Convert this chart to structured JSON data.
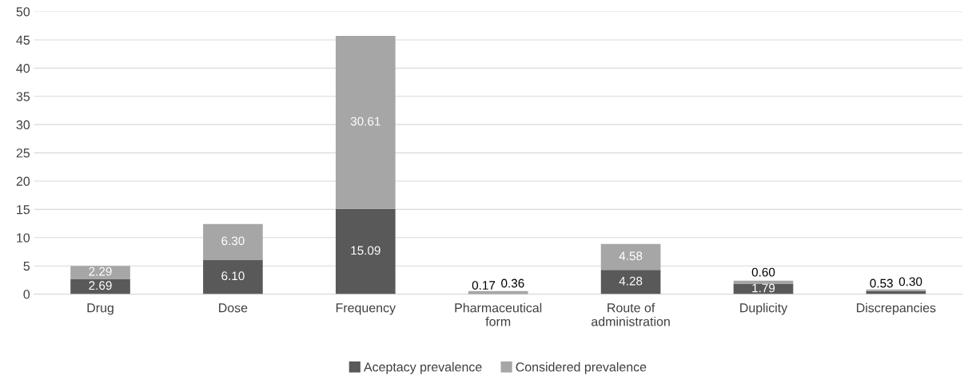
{
  "chart_data": {
    "type": "bar",
    "stacked": true,
    "categories": [
      "Drug",
      "Dose",
      "Frequency",
      "Pharmaceutical form",
      "Route of administration",
      "Duplicity",
      "Discrepancies"
    ],
    "series": [
      {
        "name": "Aceptacy prevalence",
        "color": "#595959",
        "values": [
          2.69,
          6.1,
          15.09,
          0.17,
          4.28,
          1.79,
          0.53
        ],
        "value_labels": [
          "2.69",
          "6.10",
          "15.09",
          "0.17",
          "4.28",
          "1.79",
          "0.53"
        ]
      },
      {
        "name": "Considered prevalence",
        "color": "#a6a6a6",
        "values": [
          2.29,
          6.3,
          30.61,
          0.36,
          4.58,
          0.6,
          0.3
        ],
        "value_labels": [
          "2.29",
          "6.30",
          "30.61",
          "0.36",
          "4.58",
          "0.60",
          "0.30"
        ]
      }
    ],
    "ylim": [
      0,
      50
    ],
    "yticks": [
      0,
      5,
      10,
      15,
      20,
      25,
      30,
      35,
      40,
      45,
      50
    ],
    "grid": "y",
    "legend": "bottom"
  }
}
